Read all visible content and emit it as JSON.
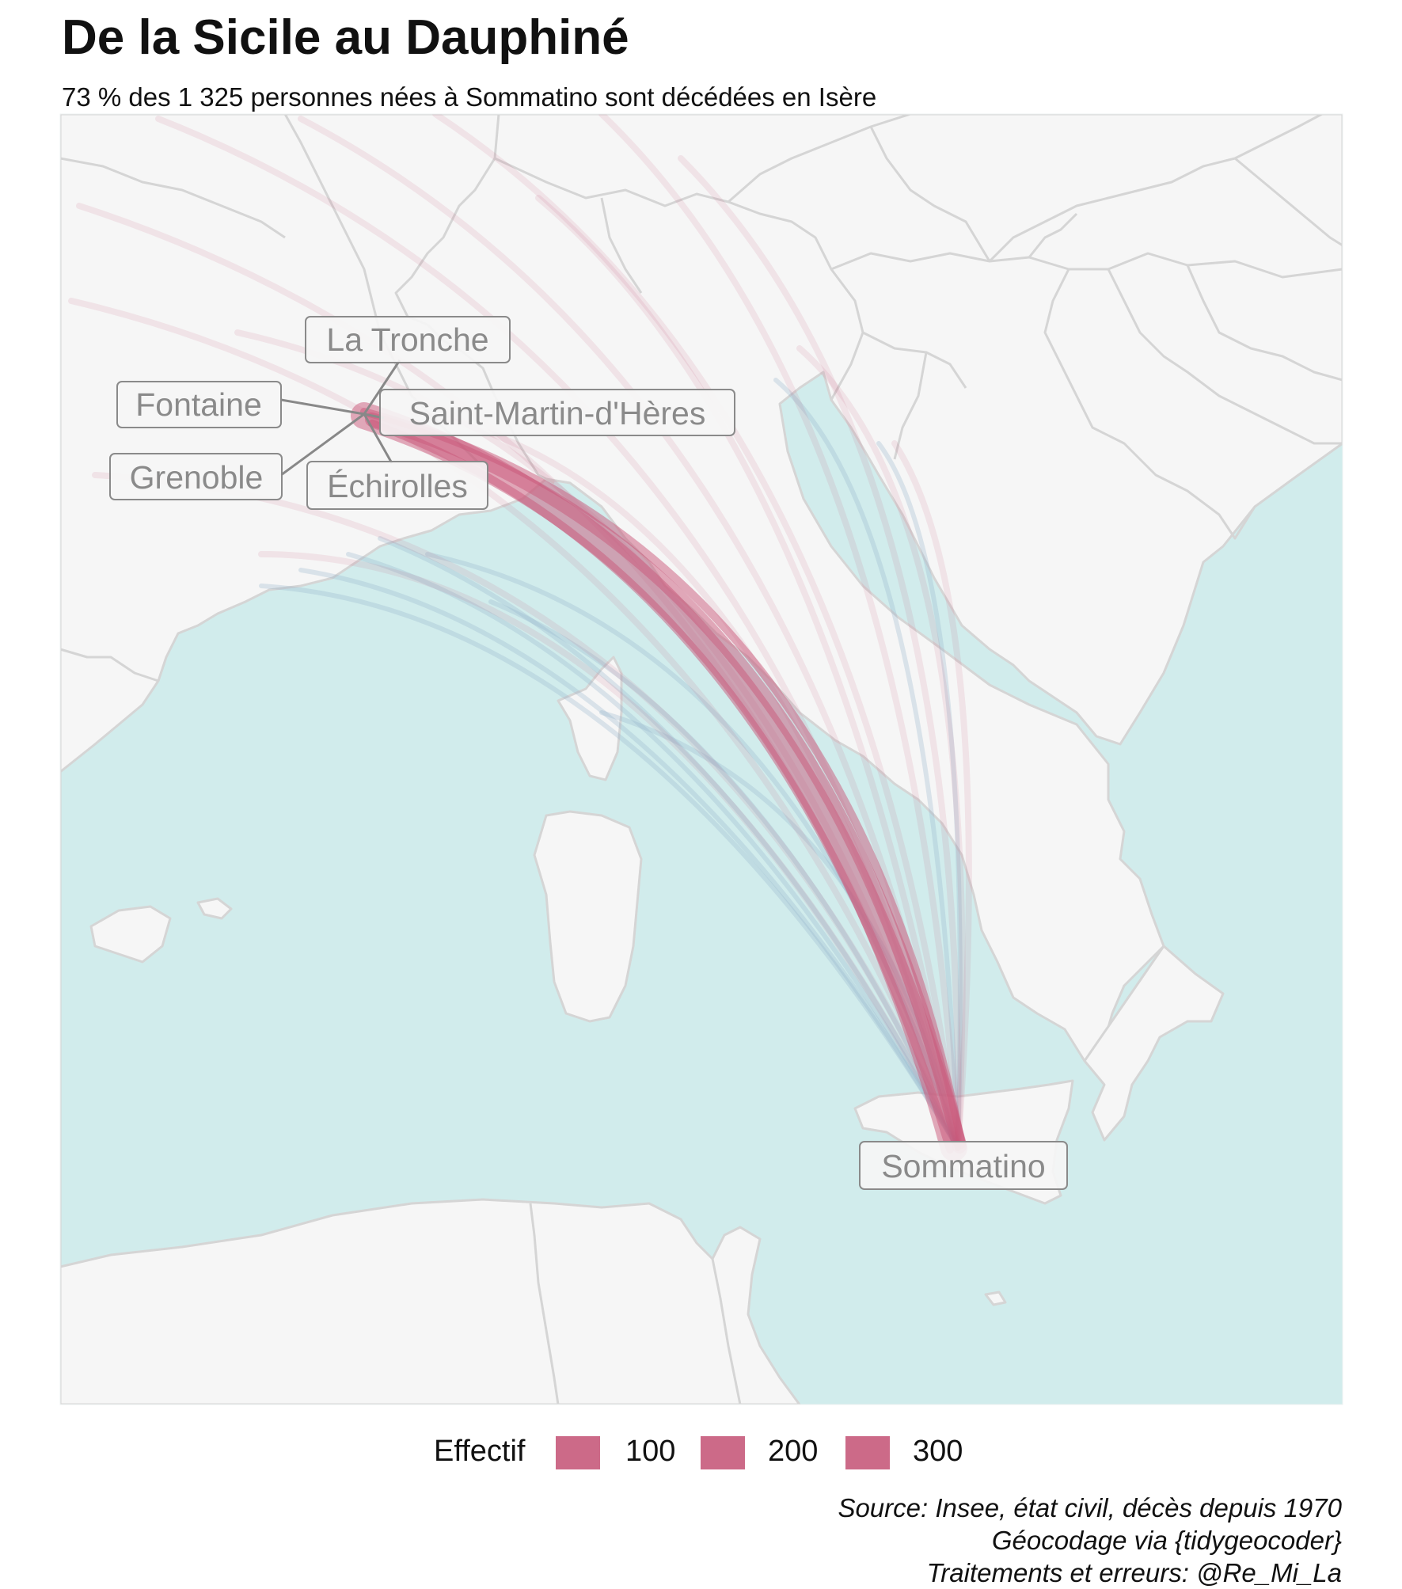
{
  "title": "De la Sicile au Dauphiné",
  "subtitle": "73 % des 1 325 personnes nées à Sommatino sont décédées en Isère",
  "colors": {
    "land": "#f6f6f6",
    "sea": "#d1ecec",
    "border": "#d5d5d5",
    "flow_red": "#c9577a",
    "flow_blue": "#8fb0c8",
    "label_border": "#8a8a8a",
    "label_text": "#8a8a8a"
  },
  "labels": {
    "origin": "Sommatino",
    "destinations": [
      "La Tronche",
      "Fontaine",
      "Saint-Martin-d'Hères",
      "Grenoble",
      "Échirolles"
    ]
  },
  "legend": {
    "title": "Effectif",
    "items": [
      "100",
      "200",
      "300"
    ]
  },
  "caption": [
    "Source: Insee, état civil, décès depuis 1970",
    "Géocodage via {tidygeocoder}",
    "Traitements et erreurs: @Re_Mi_La"
  ]
}
